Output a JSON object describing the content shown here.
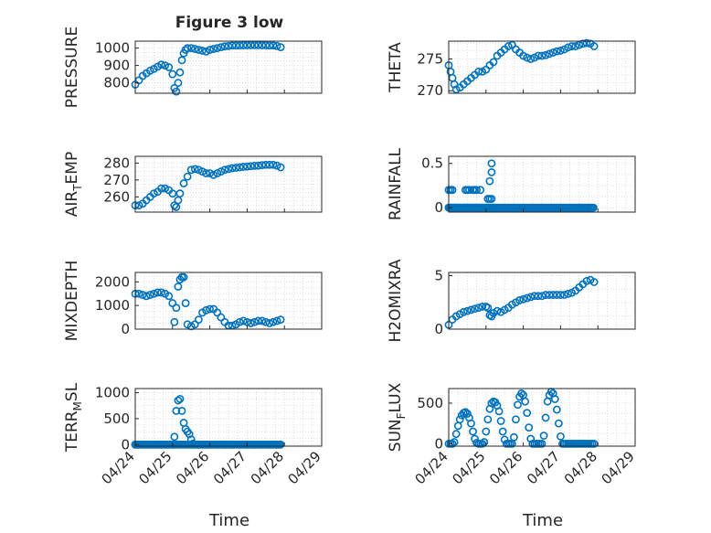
{
  "figure": {
    "title": "Figure 3 low",
    "x_label_left": "Time",
    "x_label_right": "Time",
    "x_ticks": [
      "04/24",
      "04/25",
      "04/26",
      "04/27",
      "04/28",
      "04/29"
    ],
    "marker_color": "#0072BD",
    "grid": true
  },
  "chart_data": [
    {
      "type": "scatter",
      "panel": "pressure",
      "ylabel": "PRESSURE",
      "ylabel_parts": [
        "PRESSURE"
      ],
      "ylim": [
        740,
        1040
      ],
      "yticks": [
        800,
        900,
        1000
      ],
      "xlim": [
        "04/24",
        "04/29"
      ],
      "x_day": [
        0.0,
        0.1,
        0.2,
        0.3,
        0.4,
        0.5,
        0.6,
        0.7,
        0.8,
        0.9,
        1.0,
        1.05,
        1.1,
        1.15,
        1.2,
        1.25,
        1.3,
        1.35,
        1.4,
        1.5,
        1.6,
        1.7,
        1.8,
        1.9,
        2.0,
        2.1,
        2.2,
        2.3,
        2.4,
        2.5,
        2.6,
        2.7,
        2.8,
        2.9,
        3.0,
        3.1,
        3.2,
        3.3,
        3.4,
        3.5,
        3.6,
        3.7,
        3.8,
        3.9
      ],
      "y": [
        790,
        815,
        840,
        855,
        870,
        880,
        893,
        905,
        900,
        890,
        850,
        770,
        750,
        800,
        860,
        930,
        970,
        990,
        1000,
        1000,
        995,
        990,
        985,
        980,
        990,
        995,
        1000,
        1005,
        1010,
        1012,
        1015,
        1015,
        1015,
        1016,
        1016,
        1017,
        1017,
        1017,
        1016,
        1016,
        1015,
        1015,
        1012,
        1005
      ]
    },
    {
      "type": "scatter",
      "panel": "theta",
      "ylabel": "THETA",
      "ylabel_parts": [
        "THETA"
      ],
      "ylim": [
        269.6,
        277.8
      ],
      "yticks": [
        270,
        275
      ],
      "xlim": [
        "04/24",
        "04/29"
      ],
      "x_day": [
        0.0,
        0.05,
        0.1,
        0.15,
        0.2,
        0.3,
        0.4,
        0.5,
        0.6,
        0.7,
        0.8,
        0.9,
        1.0,
        1.1,
        1.2,
        1.3,
        1.4,
        1.5,
        1.6,
        1.7,
        1.8,
        1.9,
        2.0,
        2.1,
        2.2,
        2.3,
        2.4,
        2.5,
        2.6,
        2.7,
        2.8,
        2.9,
        3.0,
        3.1,
        3.2,
        3.3,
        3.4,
        3.5,
        3.6,
        3.7,
        3.8,
        3.9
      ],
      "y": [
        274,
        273,
        272,
        271,
        270.2,
        270.5,
        271,
        271.5,
        272,
        272.5,
        273,
        273,
        273.3,
        274,
        274.5,
        275.5,
        276,
        276.5,
        277,
        277.2,
        276.5,
        276,
        275.5,
        275.2,
        275,
        275.2,
        275.5,
        275.5,
        275.6,
        275.8,
        276,
        276.2,
        276.3,
        276.5,
        276.8,
        277,
        277,
        277.2,
        277.4,
        277.5,
        277.4,
        277
      ]
    },
    {
      "type": "scatter",
      "panel": "air_temp",
      "ylabel": "AIR_TEMP",
      "ylabel_parts": [
        "AIR",
        "T",
        "EMP"
      ],
      "ylim": [
        251,
        284
      ],
      "yticks": [
        260,
        270,
        280
      ],
      "xlim": [
        "04/24",
        "04/29"
      ],
      "x_day": [
        0.0,
        0.1,
        0.2,
        0.3,
        0.4,
        0.5,
        0.6,
        0.7,
        0.8,
        0.9,
        1.0,
        1.05,
        1.1,
        1.15,
        1.2,
        1.3,
        1.4,
        1.5,
        1.6,
        1.7,
        1.8,
        1.9,
        2.0,
        2.1,
        2.2,
        2.3,
        2.4,
        2.5,
        2.6,
        2.7,
        2.8,
        2.9,
        3.0,
        3.1,
        3.2,
        3.3,
        3.4,
        3.5,
        3.6,
        3.7,
        3.8,
        3.9
      ],
      "y": [
        255,
        255,
        256,
        258,
        260,
        262,
        263,
        265,
        265,
        264,
        262,
        255,
        254,
        258,
        262,
        268,
        272,
        276,
        276.5,
        276,
        275,
        274,
        274,
        273,
        274,
        275,
        276,
        276.5,
        277,
        277.2,
        277.5,
        277.8,
        278,
        278.2,
        278.4,
        278.5,
        278.8,
        279,
        279,
        279,
        278.5,
        277.5
      ]
    },
    {
      "type": "scatter",
      "panel": "rainfall",
      "ylabel": "RAINFALL",
      "ylabel_parts": [
        "RAINFALL"
      ],
      "ylim": [
        -0.05,
        0.58
      ],
      "yticks": [
        0,
        0.5
      ],
      "ytick_labels": [
        "0",
        "0.5"
      ],
      "xlim": [
        "04/24",
        "04/29"
      ],
      "x_day": [
        0.0,
        0.05,
        0.1,
        0.15,
        0.2,
        0.3,
        0.4,
        0.5,
        0.6,
        0.7,
        0.8,
        0.9,
        1.0,
        1.05,
        1.1,
        1.15,
        1.2,
        0.0,
        0.05,
        0.1,
        0.45,
        0.5,
        0.55,
        0.65,
        0.7,
        0.75,
        0.85,
        1.05,
        1.1,
        1.15,
        1.1,
        1.15,
        1.15
      ],
      "y": [
        0,
        0,
        0,
        0,
        0,
        0,
        0,
        0,
        0,
        0,
        0,
        0,
        0,
        0,
        0,
        0,
        0,
        0.2,
        0.2,
        0.2,
        0.2,
        0.2,
        0.2,
        0.2,
        0.2,
        0.2,
        0.2,
        0.1,
        0.1,
        0.1,
        0.3,
        0.4,
        0.5
      ],
      "zero_run": [
        "04/24",
        "04/28"
      ]
    },
    {
      "type": "scatter",
      "panel": "mixdepth",
      "ylabel": "MIXDEPTH",
      "ylabel_parts": [
        "MIXDEPTH"
      ],
      "ylim": [
        0,
        2400
      ],
      "yticks": [
        0,
        1000,
        2000
      ],
      "xlim": [
        "04/24",
        "04/29"
      ],
      "x_day": [
        0.0,
        0.1,
        0.2,
        0.3,
        0.4,
        0.5,
        0.6,
        0.7,
        0.8,
        0.9,
        1.0,
        1.05,
        1.1,
        1.15,
        1.2,
        1.25,
        1.3,
        1.35,
        1.4,
        1.5,
        1.6,
        1.7,
        1.8,
        1.9,
        2.0,
        2.1,
        2.2,
        2.3,
        2.4,
        2.5,
        2.6,
        2.7,
        2.8,
        2.9,
        3.0,
        3.1,
        3.2,
        3.3,
        3.4,
        3.5,
        3.6,
        3.7,
        3.8,
        3.9
      ],
      "y": [
        1500,
        1500,
        1450,
        1400,
        1450,
        1500,
        1550,
        1550,
        1500,
        1400,
        1100,
        300,
        900,
        1800,
        2100,
        2200,
        2200,
        1100,
        200,
        120,
        200,
        400,
        700,
        800,
        850,
        850,
        700,
        500,
        300,
        150,
        150,
        200,
        300,
        350,
        300,
        250,
        300,
        350,
        350,
        300,
        250,
        300,
        350,
        400
      ]
    },
    {
      "type": "scatter",
      "panel": "h2omixra",
      "ylabel": "H2OMIXRA",
      "ylabel_parts": [
        "H2OMIXRA"
      ],
      "ylim": [
        0,
        5.3
      ],
      "yticks": [
        0,
        5
      ],
      "xlim": [
        "04/24",
        "04/29"
      ],
      "x_day": [
        0.0,
        0.1,
        0.2,
        0.3,
        0.4,
        0.5,
        0.6,
        0.7,
        0.8,
        0.9,
        1.0,
        1.05,
        1.1,
        1.15,
        1.2,
        1.3,
        1.4,
        1.5,
        1.6,
        1.7,
        1.8,
        1.9,
        2.0,
        2.1,
        2.2,
        2.3,
        2.4,
        2.5,
        2.6,
        2.7,
        2.8,
        2.9,
        3.0,
        3.1,
        3.2,
        3.3,
        3.4,
        3.5,
        3.6,
        3.7,
        3.8,
        3.9
      ],
      "y": [
        0.4,
        0.9,
        1.2,
        1.4,
        1.6,
        1.7,
        1.8,
        1.9,
        2.0,
        2.1,
        2.1,
        2.0,
        1.3,
        1.2,
        1.5,
        1.7,
        1.6,
        1.8,
        2.0,
        2.3,
        2.5,
        2.7,
        2.8,
        2.9,
        3.0,
        3.1,
        3.1,
        3.1,
        3.2,
        3.2,
        3.2,
        3.2,
        3.2,
        3.2,
        3.3,
        3.4,
        3.6,
        3.9,
        4.2,
        4.5,
        4.6,
        4.4
      ]
    },
    {
      "type": "scatter",
      "panel": "terr_msl",
      "ylabel": "TERR_MSL",
      "ylabel_parts": [
        "TERR",
        "M",
        "SL"
      ],
      "ylim": [
        -30,
        1080
      ],
      "yticks": [
        0,
        500,
        1000
      ],
      "xlim": [
        "04/24",
        "04/29"
      ],
      "x_day": [
        0.0,
        0.1,
        0.2,
        0.3,
        0.4,
        0.5,
        0.6,
        0.7,
        0.8,
        0.9,
        1.0,
        1.05,
        1.1,
        1.15,
        1.2,
        1.25,
        1.3,
        1.35,
        1.4,
        1.45,
        1.5,
        1.55,
        1.6,
        1.7,
        1.8,
        1.9,
        2.0,
        2.2,
        2.4,
        2.6,
        2.8,
        3.0,
        3.2,
        3.4,
        3.6,
        3.8,
        3.9
      ],
      "y": [
        0,
        0,
        0,
        0,
        0,
        0,
        0,
        0,
        0,
        0,
        0,
        150,
        650,
        850,
        880,
        650,
        420,
        300,
        250,
        200,
        100,
        20,
        0,
        0,
        0,
        0,
        0,
        0,
        0,
        0,
        0,
        0,
        0,
        0,
        0,
        0,
        0
      ],
      "zero_run": [
        "04/24",
        "04/28"
      ]
    },
    {
      "type": "scatter",
      "panel": "sun_flux",
      "ylabel": "SUN_FLUX",
      "ylabel_parts": [
        "SUN",
        "F",
        "LUX"
      ],
      "ylim": [
        -30,
        680
      ],
      "yticks": [
        0,
        500
      ],
      "xlim": [
        "04/24",
        "04/29"
      ],
      "x_day": [
        0.0,
        0.05,
        0.1,
        0.15,
        0.2,
        0.25,
        0.3,
        0.35,
        0.4,
        0.45,
        0.5,
        0.55,
        0.6,
        0.65,
        0.7,
        0.75,
        0.8,
        0.85,
        0.9,
        0.95,
        1.0,
        1.05,
        1.1,
        1.15,
        1.2,
        1.25,
        1.3,
        1.35,
        1.4,
        1.45,
        1.5,
        1.55,
        1.6,
        1.65,
        1.7,
        1.75,
        1.8,
        1.85,
        1.9,
        1.95,
        2.0,
        2.05,
        2.1,
        2.15,
        2.2,
        2.25,
        2.3,
        2.35,
        2.4,
        2.45,
        2.5,
        2.55,
        2.6,
        2.65,
        2.7,
        2.75,
        2.8,
        2.85,
        2.9,
        2.95,
        3.0,
        3.05,
        3.1,
        3.15,
        3.2,
        3.25,
        3.3,
        3.35,
        3.4,
        3.45,
        3.5,
        3.55,
        3.6,
        3.65,
        3.7,
        3.75,
        3.8,
        3.85,
        3.9
      ],
      "y": [
        0,
        0,
        0,
        20,
        120,
        220,
        300,
        350,
        380,
        390,
        370,
        320,
        250,
        150,
        60,
        10,
        0,
        0,
        0,
        20,
        150,
        300,
        430,
        500,
        520,
        510,
        470,
        400,
        280,
        150,
        50,
        0,
        0,
        0,
        0,
        80,
        300,
        480,
        580,
        620,
        600,
        520,
        380,
        200,
        60,
        0,
        0,
        0,
        0,
        0,
        0,
        100,
        320,
        520,
        600,
        640,
        620,
        550,
        420,
        250,
        90,
        0,
        0,
        0,
        0,
        0,
        0,
        0,
        0,
        0,
        0,
        0,
        0,
        0,
        0,
        0,
        0,
        0,
        0
      ]
    }
  ]
}
